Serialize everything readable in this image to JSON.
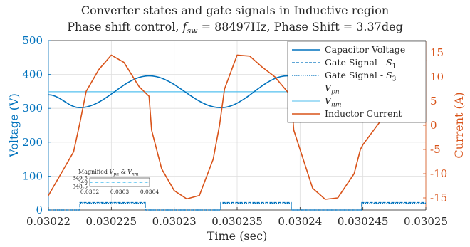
{
  "chart_data": {
    "type": "line",
    "title": "Converter states and gate signals in Inductive region",
    "subtitle": "Phase shift control, f_sw = 88497Hz, Phase Shift = 3.37deg",
    "xlabel": "Time (sec)",
    "ylabel_left": "Voltage (V)",
    "ylabel_right": "Current (A)",
    "xlim": [
      0.03022,
      0.03025
    ],
    "ylim_left": [
      0,
      500
    ],
    "ylim_right": [
      -17.5,
      17.5
    ],
    "x_ticks": [
      "0.03022",
      "0.030225",
      "0.03023",
      "0.030235",
      "0.03024",
      "0.030245",
      "0.03025"
    ],
    "y_ticks_left": [
      "0",
      "100",
      "200",
      "300",
      "400",
      "500"
    ],
    "y_ticks_right": [
      "-15",
      "-10",
      "-5",
      "0",
      "5",
      "10",
      "15"
    ],
    "legend_position": "top-right",
    "colors": {
      "voltage": "#0072BD",
      "vpn": "#4DBEEE",
      "current": "#D95319",
      "axis_left": "#0072BD",
      "axis_right": "#D95319"
    },
    "series": [
      {
        "name": "Capacitor Voltage",
        "axis": "left",
        "style": "solid",
        "color": "#0072BD",
        "x": [
          0.03022,
          0.0302225,
          0.030228,
          0.0302337,
          0.030239,
          0.030245,
          0.03025
        ],
        "y": [
          340,
          302,
          396,
          302,
          396,
          302,
          396
        ]
      },
      {
        "name": "Gate Signal - S_1",
        "axis": "left",
        "style": "dashed",
        "color": "#0072BD",
        "pulses": [
          [
            0.0302225,
            0.0302277
          ],
          [
            0.0302337,
            0.0302393
          ],
          [
            0.0302449,
            0.03025
          ]
        ],
        "high": 22,
        "low": 0
      },
      {
        "name": "Gate Signal - S_3",
        "axis": "left",
        "style": "dotted",
        "color": "#0072BD",
        "pulses": [
          [
            0.0302225,
            0.0302277
          ],
          [
            0.0302337,
            0.0302393
          ],
          [
            0.0302449,
            0.03025
          ]
        ],
        "high": 20,
        "low": 0
      },
      {
        "name": "V_pn",
        "axis": "left",
        "style": "solid",
        "color": "#4DBEEE",
        "value": 349
      },
      {
        "name": "V_nm",
        "axis": "left",
        "style": "solid",
        "color": "#4DBEEE",
        "value": 349
      },
      {
        "name": "Inductor Current",
        "axis": "right",
        "style": "solid",
        "color": "#D95319",
        "x": [
          0.03022,
          0.030222,
          0.0302225,
          0.030223,
          0.030224,
          0.030225,
          0.030226,
          0.0302272,
          0.030228,
          0.0302282,
          0.030229,
          0.03023,
          0.030231,
          0.030232,
          0.0302331,
          0.0302336,
          0.030234,
          0.030235,
          0.030236,
          0.030237,
          0.030238,
          0.0302393,
          0.0302395,
          0.030241,
          0.030242,
          0.030243,
          0.0302443,
          0.0302448,
          0.030245,
          0.03025
        ],
        "y": [
          -14.5,
          -5.5,
          0.5,
          7,
          11.5,
          14.5,
          13,
          8,
          6,
          -1,
          -9,
          -13.5,
          -15.2,
          -14.5,
          -7,
          0,
          7.5,
          14.5,
          14.3,
          12,
          10,
          6,
          -1,
          -13,
          -15.3,
          -15,
          -10,
          -5,
          -4,
          13.5
        ]
      }
    ],
    "inset": {
      "title": "Magnified V_pn & V_nm",
      "xlim": [
        0.0302,
        0.0304
      ],
      "ylim": [
        348.5,
        349.5
      ],
      "x_ticks": [
        "0.0302",
        "0.0303",
        "0.0304"
      ],
      "y_ticks": [
        "349.5",
        "349",
        "348.5"
      ],
      "value": 349
    }
  }
}
